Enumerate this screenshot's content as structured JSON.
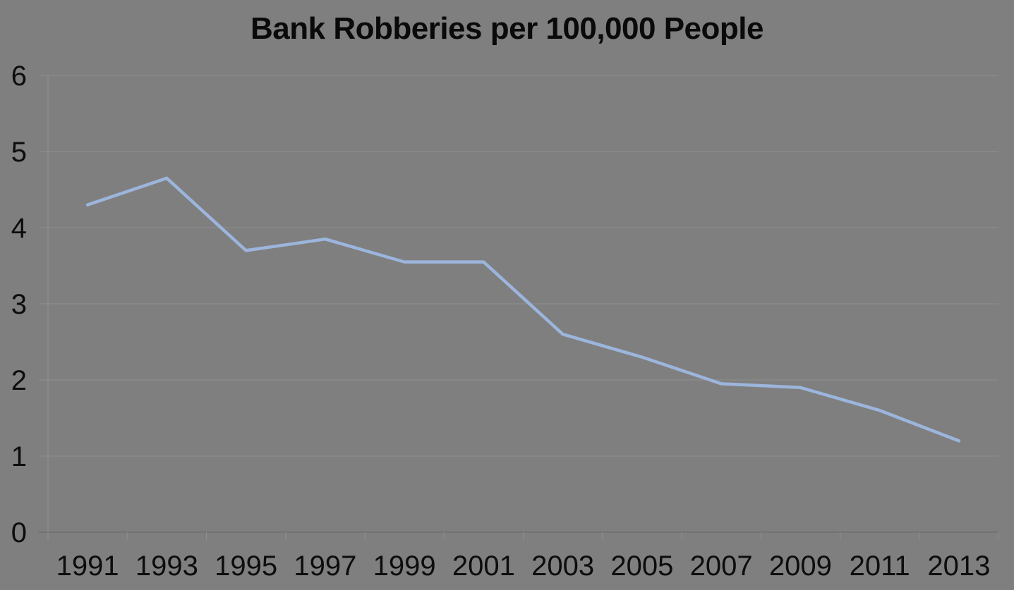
{
  "chart": {
    "title": "Bank Robberies per 100,000 People"
  },
  "chart_data": {
    "type": "line",
    "title": "Bank Robberies per 100,000 People",
    "categories": [
      "1991",
      "1993",
      "1995",
      "1997",
      "1999",
      "2001",
      "2003",
      "2005",
      "2007",
      "2009",
      "2011",
      "2013"
    ],
    "values": [
      4.3,
      4.65,
      3.7,
      3.85,
      3.55,
      3.55,
      2.6,
      2.3,
      1.95,
      1.9,
      1.6,
      1.2
    ],
    "xlabel": "",
    "ylabel": "",
    "ylim": [
      0,
      6
    ],
    "yticks": [
      0,
      1,
      2,
      3,
      4,
      5,
      6
    ],
    "grid": "horizontal",
    "legend": false,
    "colors": {
      "background": "#7f7f7f",
      "line": "#9cb5dc",
      "gridline": "#8f8f8f",
      "axis": "#6e6e6e",
      "text": "#0d0d0d"
    }
  }
}
